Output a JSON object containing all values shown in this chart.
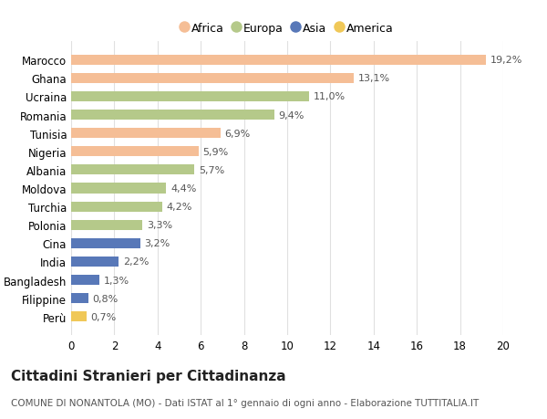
{
  "countries": [
    "Marocco",
    "Ghana",
    "Ucraina",
    "Romania",
    "Tunisia",
    "Nigeria",
    "Albania",
    "Moldova",
    "Turchia",
    "Polonia",
    "Cina",
    "India",
    "Bangladesh",
    "Filippine",
    "Perù"
  ],
  "values": [
    19.2,
    13.1,
    11.0,
    9.4,
    6.9,
    5.9,
    5.7,
    4.4,
    4.2,
    3.3,
    3.2,
    2.2,
    1.3,
    0.8,
    0.7
  ],
  "labels": [
    "19,2%",
    "13,1%",
    "11,0%",
    "9,4%",
    "6,9%",
    "5,9%",
    "5,7%",
    "4,4%",
    "4,2%",
    "3,3%",
    "3,2%",
    "2,2%",
    "1,3%",
    "0,8%",
    "0,7%"
  ],
  "continents": [
    "Africa",
    "Africa",
    "Europa",
    "Europa",
    "Africa",
    "Africa",
    "Europa",
    "Europa",
    "Europa",
    "Europa",
    "Asia",
    "Asia",
    "Asia",
    "Asia",
    "America"
  ],
  "colors": {
    "Africa": "#F5BE96",
    "Europa": "#B5C98A",
    "Asia": "#5878B8",
    "America": "#F0C858"
  },
  "legend_order": [
    "Africa",
    "Europa",
    "Asia",
    "America"
  ],
  "legend_colors": [
    "#F5BE96",
    "#B5C98A",
    "#5878B8",
    "#F0C858"
  ],
  "xlim": [
    0,
    20
  ],
  "xticks": [
    0,
    2,
    4,
    6,
    8,
    10,
    12,
    14,
    16,
    18,
    20
  ],
  "title": "Cittadini Stranieri per Cittadinanza",
  "subtitle": "COMUNE DI NONANTOLA (MO) - Dati ISTAT al 1° gennaio di ogni anno - Elaborazione TUTTITALIA.IT",
  "background_color": "#ffffff",
  "grid_color": "#e0e0e0",
  "bar_height": 0.55,
  "label_fontsize": 8,
  "ytick_fontsize": 8.5,
  "xtick_fontsize": 8.5,
  "title_fontsize": 11,
  "subtitle_fontsize": 7.5
}
